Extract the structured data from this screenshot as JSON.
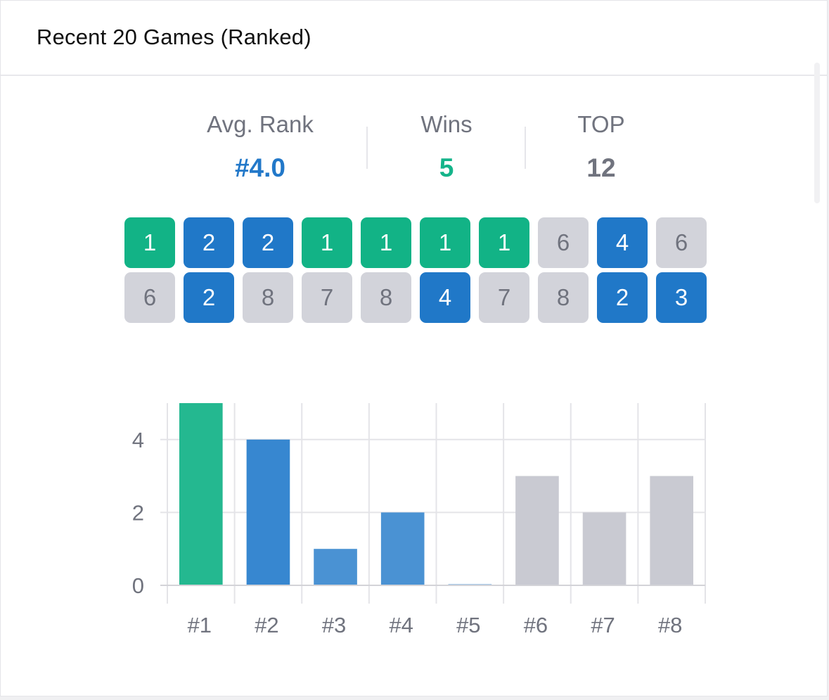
{
  "header": {
    "title": "Recent 20 Games (Ranked)"
  },
  "stats": [
    {
      "label": "Avg. Rank",
      "value": "#4.0",
      "color": "#2278c9"
    },
    {
      "label": "Wins",
      "value": "5",
      "color": "#15b48a"
    },
    {
      "label": "TOP",
      "value": "12",
      "color": "#70737e"
    }
  ],
  "colors": {
    "win": "#12b386",
    "top": "#2078c8",
    "other": "#d2d3da",
    "other_text": "#70737e"
  },
  "recent_ranks": [
    1,
    2,
    2,
    1,
    1,
    1,
    1,
    6,
    4,
    6,
    6,
    2,
    8,
    7,
    8,
    4,
    7,
    8,
    2,
    3
  ],
  "chart_data": {
    "type": "bar",
    "categories": [
      "#1",
      "#2",
      "#3",
      "#4",
      "#5",
      "#6",
      "#7",
      "#8"
    ],
    "values": [
      5,
      4,
      1,
      2,
      0,
      3,
      2,
      3
    ],
    "bar_colors": [
      "#24b890",
      "#3787d0",
      "#4a92d3",
      "#4a92d3",
      "#4a92d3",
      "#c9cad2",
      "#c9cad2",
      "#c9cad2"
    ],
    "ylim": [
      0,
      5
    ],
    "yticks": [
      "0",
      "2",
      "4"
    ],
    "grid": true,
    "xlabel": "",
    "ylabel": ""
  }
}
